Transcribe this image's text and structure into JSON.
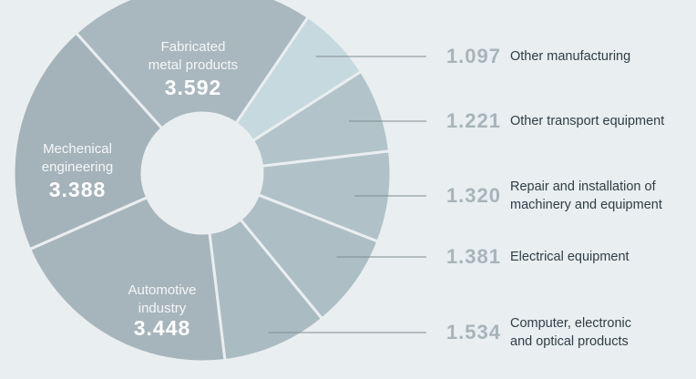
{
  "chart_data": {
    "type": "donut",
    "categories": [
      "Fabricated\nmetal products",
      "Other manufacturing",
      "Other transport equipment",
      "Repair and installation of\nmachinery and equipment",
      "Electrical equipment",
      "Computer, electronic\nand optical products",
      "Automotive\nindustry",
      "Mechenical\nengineering"
    ],
    "values": [
      3.592,
      1.097,
      1.221,
      1.32,
      1.381,
      1.534,
      3.448,
      3.388
    ],
    "value_labels": [
      "3.592",
      "1.097",
      "1.221",
      "1.320",
      "1.381",
      "1.534",
      "3.448",
      "3.388"
    ],
    "colors": [
      "#a9b8be",
      "#c5d9de",
      "#b2c3c9",
      "#b0c1c7",
      "#adbec4",
      "#aabbc1",
      "#a6b5bb",
      "#a4b3b9"
    ]
  }
}
